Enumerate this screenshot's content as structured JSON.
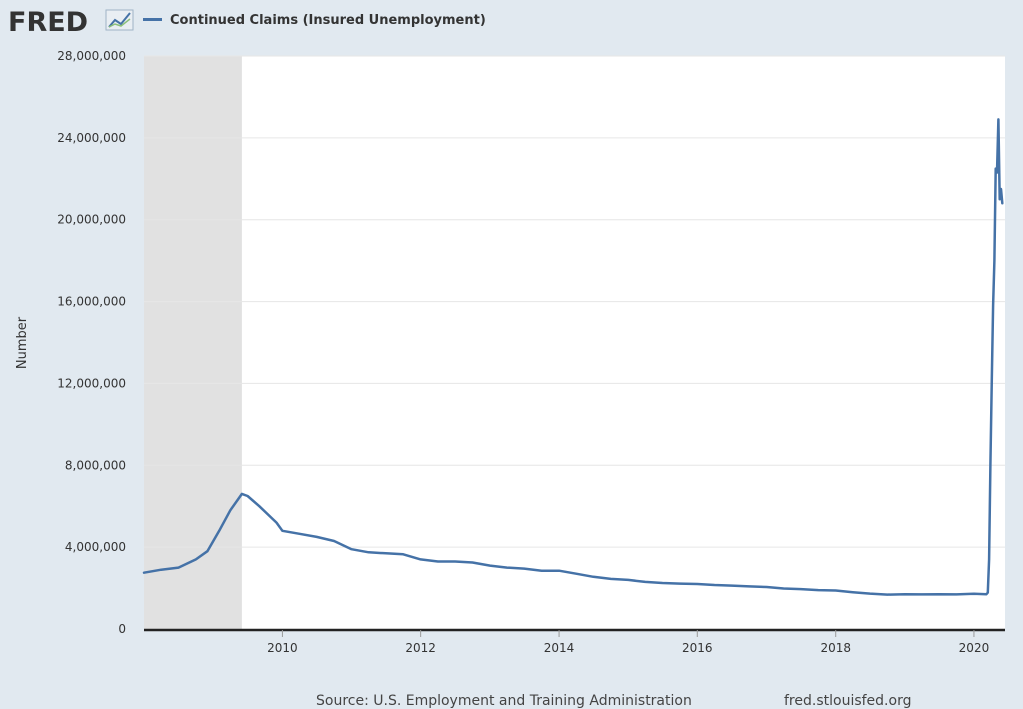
{
  "header": {
    "logo_text": "FRED",
    "logo_icon": "trend-line-icon"
  },
  "legend": {
    "label": "Continued Claims (Insured Unemployment)"
  },
  "footer": {
    "source": "Source: U.S. Employment and Training Administration",
    "site": "fred.stlouisfed.org"
  },
  "colors": {
    "background": "#e1e9f0",
    "plot": "#ffffff",
    "series": "#4572a7",
    "recession": "#e1e1e1",
    "text": "#333333"
  },
  "chart_data": {
    "type": "line",
    "title": "",
    "xlabel": "",
    "ylabel": "Number",
    "xlim": [
      "2008-01-01",
      "2020-06-13"
    ],
    "ylim": [
      0,
      28000000
    ],
    "y_ticks": [
      0,
      4000000,
      8000000,
      12000000,
      16000000,
      20000000,
      24000000,
      28000000
    ],
    "y_tick_labels": [
      "0",
      "4,000,000",
      "8,000,000",
      "12,000,000",
      "16,000,000",
      "20,000,000",
      "24,000,000",
      "28,000,000"
    ],
    "x_ticks": [
      "2010-01-01",
      "2012-01-01",
      "2014-01-01",
      "2016-01-01",
      "2018-01-01",
      "2020-01-01"
    ],
    "x_tick_labels": [
      "2010",
      "2012",
      "2014",
      "2016",
      "2018",
      "2020"
    ],
    "grid": true,
    "legend_position": "top-left",
    "recessions": [
      {
        "start": "2008-01-01",
        "end": "2009-06-01"
      }
    ],
    "series": [
      {
        "name": "Continued Claims (Insured Unemployment)",
        "color": "#4572a7",
        "points": [
          [
            "2008-01-01",
            2750000
          ],
          [
            "2008-04-01",
            2900000
          ],
          [
            "2008-07-01",
            3000000
          ],
          [
            "2008-10-01",
            3400000
          ],
          [
            "2008-12-01",
            3800000
          ],
          [
            "2009-02-01",
            4800000
          ],
          [
            "2009-04-01",
            5800000
          ],
          [
            "2009-06-01",
            6600000
          ],
          [
            "2009-07-01",
            6500000
          ],
          [
            "2009-09-01",
            6000000
          ],
          [
            "2009-12-01",
            5200000
          ],
          [
            "2010-01-01",
            4800000
          ],
          [
            "2010-04-01",
            4650000
          ],
          [
            "2010-07-01",
            4500000
          ],
          [
            "2010-10-01",
            4300000
          ],
          [
            "2011-01-01",
            3900000
          ],
          [
            "2011-04-01",
            3750000
          ],
          [
            "2011-07-01",
            3700000
          ],
          [
            "2011-10-01",
            3650000
          ],
          [
            "2012-01-01",
            3400000
          ],
          [
            "2012-04-01",
            3300000
          ],
          [
            "2012-07-01",
            3300000
          ],
          [
            "2012-10-01",
            3250000
          ],
          [
            "2013-01-01",
            3100000
          ],
          [
            "2013-04-01",
            3000000
          ],
          [
            "2013-07-01",
            2950000
          ],
          [
            "2013-10-01",
            2850000
          ],
          [
            "2014-01-01",
            2850000
          ],
          [
            "2014-04-01",
            2700000
          ],
          [
            "2014-07-01",
            2550000
          ],
          [
            "2014-10-01",
            2450000
          ],
          [
            "2015-01-01",
            2400000
          ],
          [
            "2015-04-01",
            2300000
          ],
          [
            "2015-07-01",
            2250000
          ],
          [
            "2015-10-01",
            2220000
          ],
          [
            "2016-01-01",
            2200000
          ],
          [
            "2016-04-01",
            2150000
          ],
          [
            "2016-07-01",
            2120000
          ],
          [
            "2016-10-01",
            2080000
          ],
          [
            "2017-01-01",
            2050000
          ],
          [
            "2017-04-01",
            1980000
          ],
          [
            "2017-07-01",
            1950000
          ],
          [
            "2017-10-01",
            1900000
          ],
          [
            "2018-01-01",
            1880000
          ],
          [
            "2018-04-01",
            1800000
          ],
          [
            "2018-07-01",
            1730000
          ],
          [
            "2018-10-01",
            1680000
          ],
          [
            "2019-01-01",
            1700000
          ],
          [
            "2019-04-01",
            1690000
          ],
          [
            "2019-07-01",
            1700000
          ],
          [
            "2019-10-01",
            1690000
          ],
          [
            "2020-01-01",
            1720000
          ],
          [
            "2020-03-07",
            1700000
          ],
          [
            "2020-03-14",
            1780000
          ],
          [
            "2020-03-21",
            3400000
          ],
          [
            "2020-03-28",
            8000000
          ],
          [
            "2020-04-04",
            11900000
          ],
          [
            "2020-04-11",
            15800000
          ],
          [
            "2020-04-18",
            18000000
          ],
          [
            "2020-04-25",
            22500000
          ],
          [
            "2020-05-02",
            22300000
          ],
          [
            "2020-05-09",
            24900000
          ],
          [
            "2020-05-16",
            21000000
          ],
          [
            "2020-05-23",
            21500000
          ],
          [
            "2020-05-30",
            20800000
          ]
        ]
      }
    ]
  }
}
